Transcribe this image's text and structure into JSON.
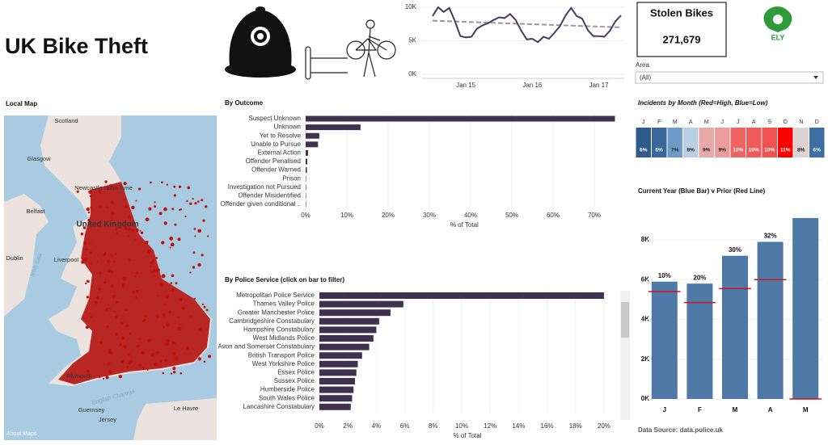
{
  "header": {
    "title": "UK Bike Theft",
    "logo_text": "ELY",
    "data_source": "Data Source: data.police.uk"
  },
  "kpi": {
    "label": "Stolen Bikes",
    "value": "271,679"
  },
  "filter": {
    "label": "Area",
    "selected": "(All)"
  },
  "map": {
    "title": "Local Map",
    "labels": [
      "Scotland",
      "Glasgow",
      "Newcastle upon Tyne",
      "Belfast",
      "United Kingdom",
      "Dublin",
      "Liverpool",
      "Irish Sea",
      "Plymouth",
      "English Channel",
      "Guernsey",
      "Jersey",
      "Le Havre"
    ],
    "attribution": "About Maps"
  },
  "chart_data": [
    {
      "type": "line",
      "categories": [
        null,
        null,
        null,
        null,
        null,
        null,
        "Jan 15",
        null,
        null,
        null,
        null,
        null,
        null,
        null,
        null,
        null,
        null,
        null,
        "Jan 16",
        null,
        null,
        null,
        null,
        null,
        null,
        null,
        null,
        null,
        null,
        null,
        "Jan 17",
        null,
        null,
        null,
        null
      ],
      "values": [
        8700,
        10000,
        9300,
        9900,
        8000,
        5700,
        5500,
        5600,
        6800,
        7300,
        7600,
        8100,
        8500,
        8400,
        9000,
        8100,
        6500,
        5200,
        5300,
        4800,
        5600,
        5300,
        6200,
        7200,
        8800,
        9900,
        8700,
        8300,
        6600,
        5700,
        5700,
        5600,
        6500,
        7900,
        8800
      ],
      "trend": [
        8000,
        7000
      ],
      "color": "#4a3b63",
      "trend_color": "#999999",
      "ylim": [
        0,
        10000
      ],
      "yticks": [
        {
          "value": 0,
          "label": "0K"
        },
        {
          "value": 5000,
          "label": "5K"
        },
        {
          "value": 10000,
          "label": "10K"
        }
      ],
      "grid": true
    },
    {
      "type": "bar",
      "orientation": "horizontal",
      "title": "By Outcome",
      "x_label": "% of Total",
      "categories": [
        "Suspect Unknown",
        "Unknown",
        "Yet to Resolve",
        "Unable to Pursue",
        "External Action",
        "Offender Penalised",
        "Offender Warned",
        "Prison",
        "Investigation not Pursued",
        "Offender Misidentified",
        "Offender given conditional .."
      ],
      "values": [
        75,
        13.3,
        3.3,
        3,
        0.6,
        0.4,
        0.3,
        0.1,
        0.1,
        0.05,
        0.05
      ],
      "color": "#40324f",
      "xlim": [
        0,
        77
      ],
      "xticks": [
        {
          "value": 0,
          "label": "0%"
        },
        {
          "value": 10,
          "label": "10%"
        },
        {
          "value": 20,
          "label": "20%"
        },
        {
          "value": 30,
          "label": "30%"
        },
        {
          "value": 40,
          "label": "40%"
        },
        {
          "value": 50,
          "label": "50%"
        },
        {
          "value": 60,
          "label": "60%"
        },
        {
          "value": 70,
          "label": "70%"
        }
      ],
      "grid": true
    },
    {
      "type": "bar",
      "orientation": "horizontal",
      "title": "By Police Service (click on bar to filter)",
      "x_label": "% of Total",
      "categories": [
        "Metropolitan Police Service",
        "Thames Valley Police",
        "Greater Manchester Police",
        "Cambridgeshire Constabulary",
        "Hampshire Constabulary",
        "West Midlands Police",
        "Avon and Somerset Constabulary",
        "British Transport Police",
        "West Yorkshire Police",
        "Essex Police",
        "Sussex Police",
        "Humberside Police",
        "South Wales Police",
        "Lancashire Constabulary"
      ],
      "values": [
        20,
        5.9,
        5,
        4.2,
        4,
        3.8,
        3.5,
        3,
        2.7,
        2.6,
        2.5,
        2.4,
        2.3,
        2.2
      ],
      "color": "#40324f",
      "xlim": [
        0,
        20.8
      ],
      "xticks": [
        {
          "value": 0,
          "label": "0%"
        },
        {
          "value": 2,
          "label": "2%"
        },
        {
          "value": 4,
          "label": "4%"
        },
        {
          "value": 6,
          "label": "6%"
        },
        {
          "value": 8,
          "label": "8%"
        },
        {
          "value": 10,
          "label": "10%"
        },
        {
          "value": 12,
          "label": "12%"
        },
        {
          "value": 14,
          "label": "14%"
        },
        {
          "value": 16,
          "label": "16%"
        },
        {
          "value": 18,
          "label": "18%"
        },
        {
          "value": 20,
          "label": "20%"
        }
      ],
      "grid": true
    },
    {
      "type": "heatmap",
      "title": "Incidents by Month (Red=High, Blue=Low)",
      "categories": [
        "J",
        "F",
        "M",
        "A",
        "M",
        "J",
        "J",
        "A",
        "S",
        "O",
        "N",
        "D"
      ],
      "values": [
        6,
        6,
        7,
        8,
        9,
        9,
        10,
        10,
        10,
        11,
        8,
        6
      ],
      "value_labels": [
        "6%",
        "6%",
        "7%",
        "8%",
        "9%",
        "9%",
        "10%",
        "10%",
        "10%",
        "11%",
        "8%",
        "6%"
      ],
      "colors": [
        "#2f5b8c",
        "#3a679a",
        "#6e9bc6",
        "#b9cfe4",
        "#e7aaa9",
        "#eb9c9b",
        "#ef6363",
        "#ef5a5a",
        "#f05252",
        "#ff0000",
        "#ddd2d2",
        "#3d6ea4"
      ]
    },
    {
      "type": "bar",
      "title": "Current Year (Blue Bar) v Prior (Red Line)",
      "categories": [
        "J",
        "F",
        "M",
        "A",
        "M"
      ],
      "values": [
        5900,
        5800,
        7200,
        7900,
        9100
      ],
      "color": "#4e79a7",
      "prior_values": [
        5400,
        4850,
        5550,
        6000,
        0
      ],
      "prior_color": "#d0111b",
      "change_labels": [
        "10%",
        "20%",
        "30%",
        "32%",
        null
      ],
      "ylim": [
        0,
        9300
      ],
      "yticks": [
        {
          "value": 0,
          "label": "0K"
        },
        {
          "value": 2000,
          "label": "2K"
        },
        {
          "value": 4000,
          "label": "4K"
        },
        {
          "value": 6000,
          "label": "6K"
        },
        {
          "value": 8000,
          "label": "8K"
        }
      ],
      "grid": true
    }
  ]
}
